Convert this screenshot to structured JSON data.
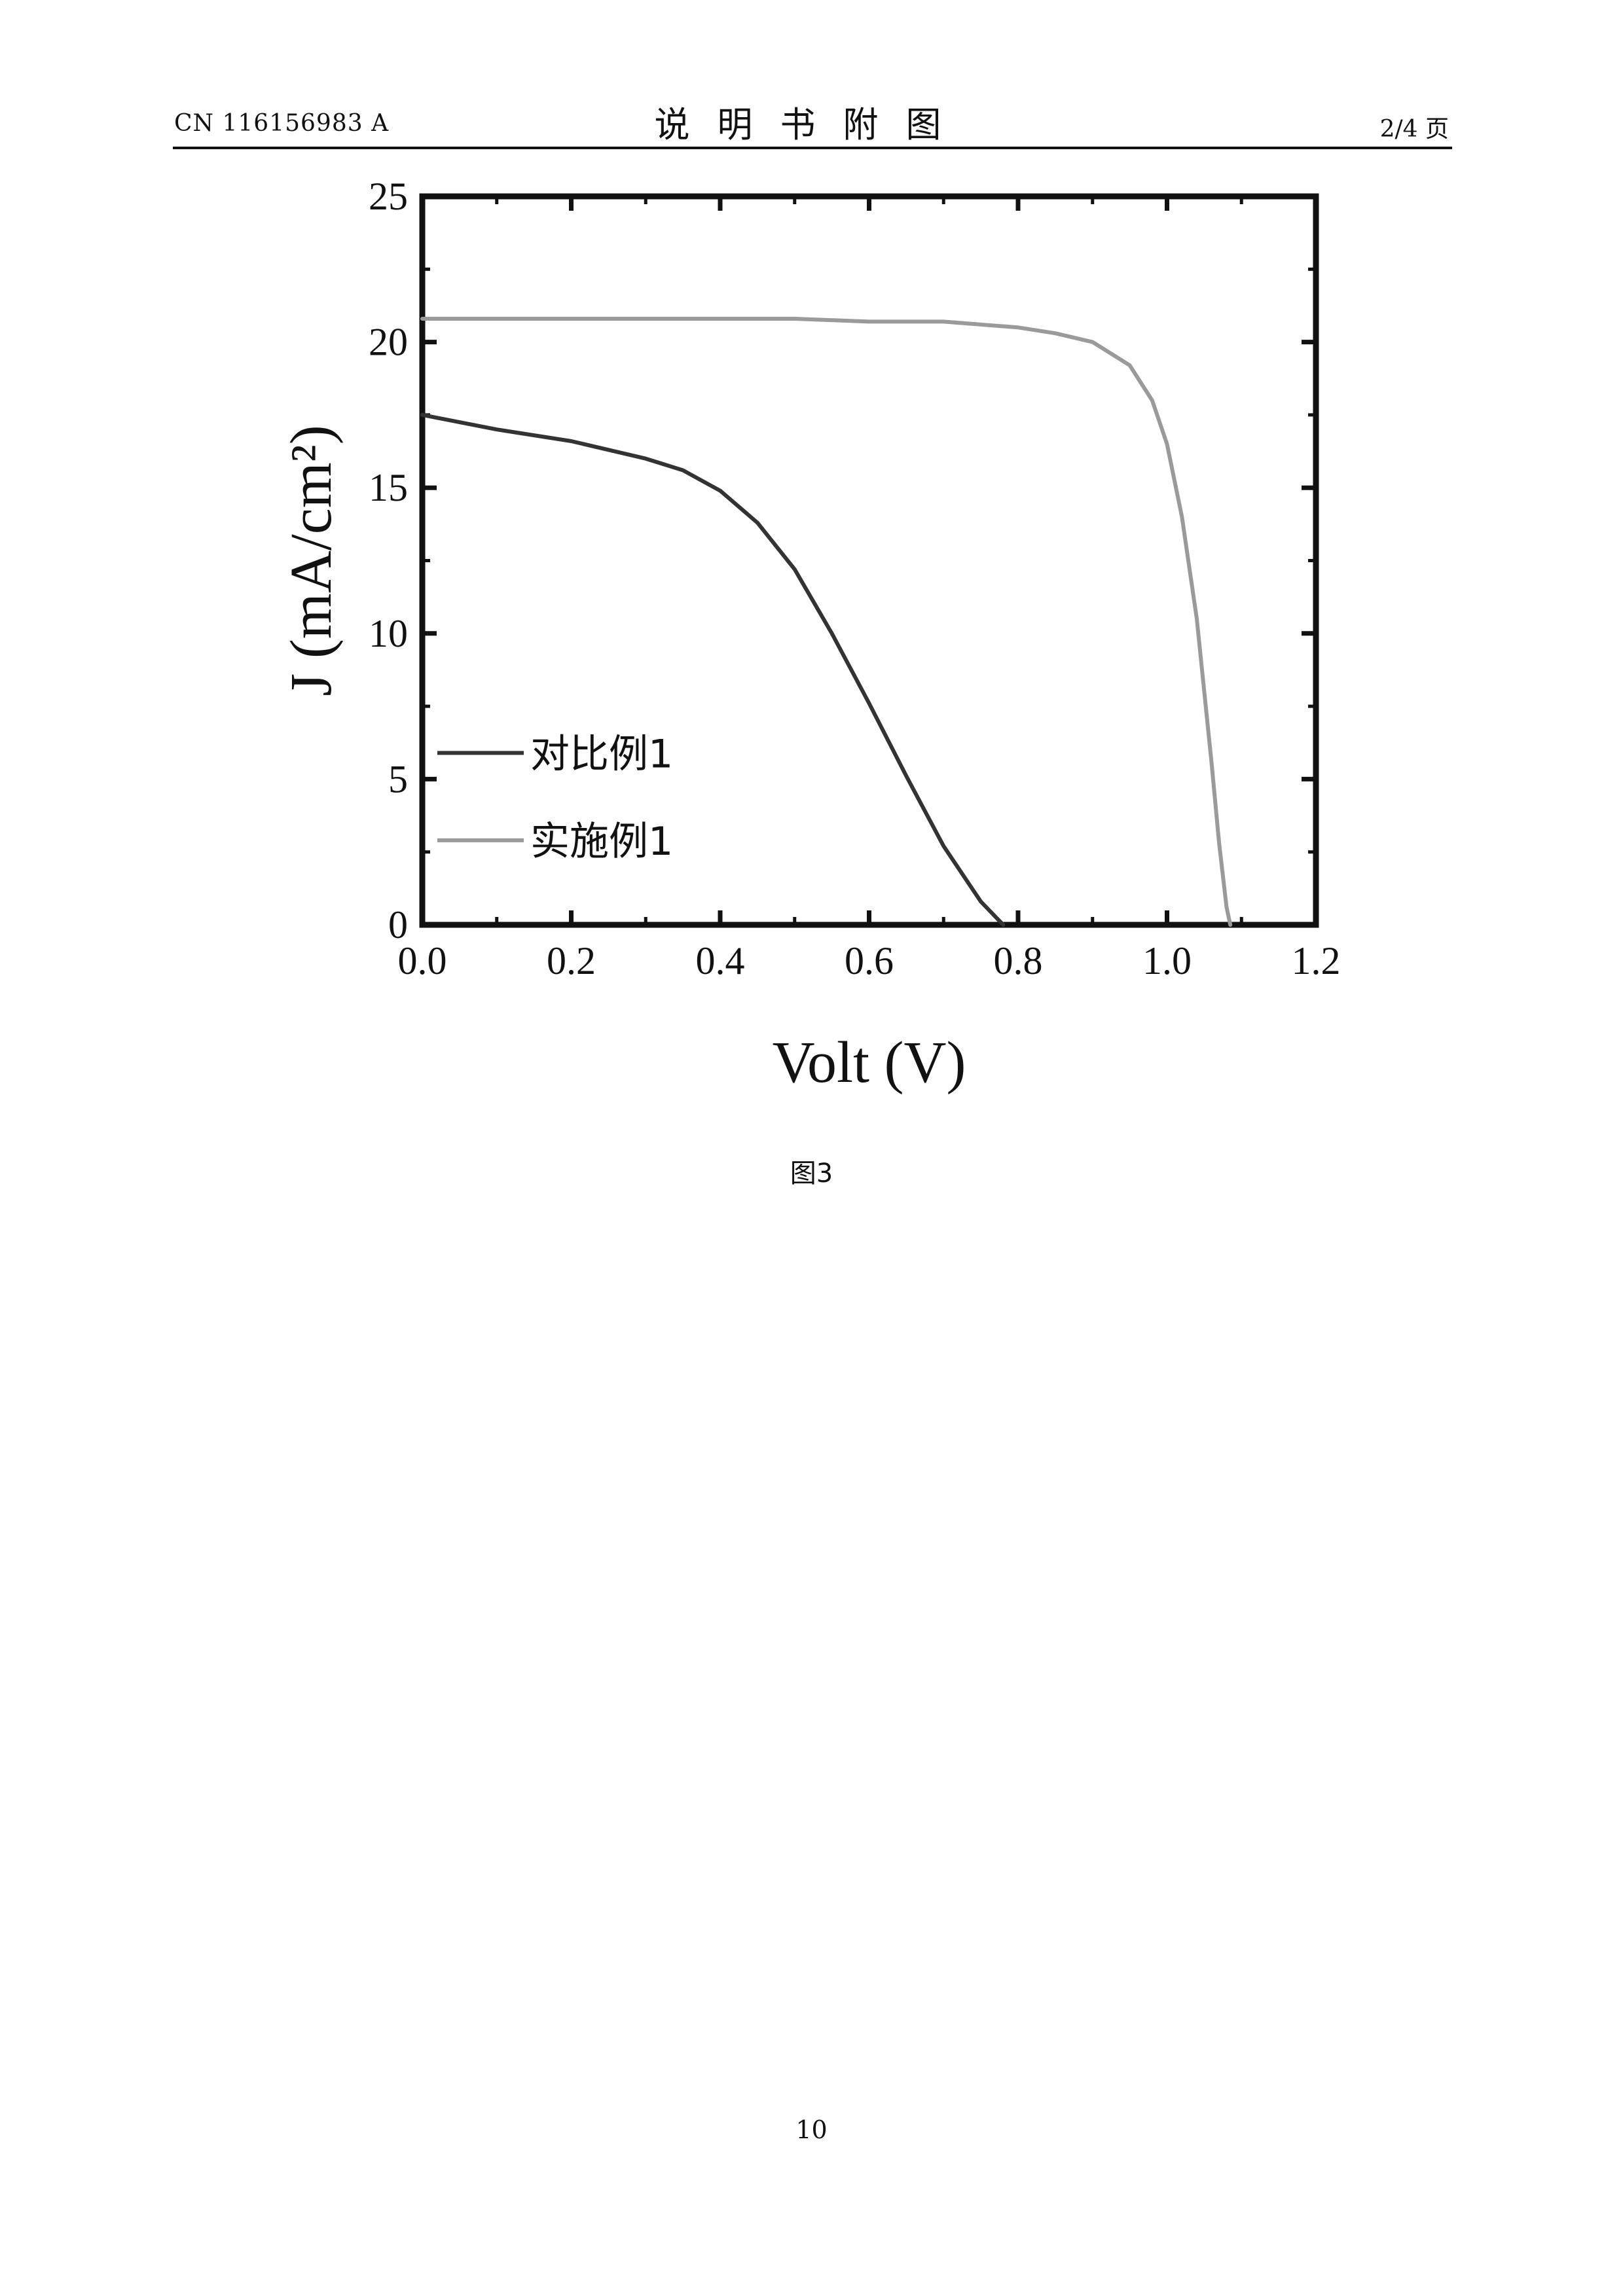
{
  "header": {
    "doc_number": "CN 116156983 A",
    "title": "说明书附图",
    "page_fraction": "2/4 页"
  },
  "figure": {
    "caption": "图3"
  },
  "footer": {
    "page_number": "10"
  },
  "chart_data": {
    "type": "line",
    "title": "",
    "xlabel": "Volt (V)",
    "ylabel": "J (mA/cm²)",
    "xlim": [
      0.0,
      1.2
    ],
    "ylim": [
      0,
      25
    ],
    "xticks": [
      "0.0",
      "0.2",
      "0.4",
      "0.6",
      "0.8",
      "1.0",
      "1.2"
    ],
    "yticks": [
      "0",
      "5",
      "10",
      "15",
      "20",
      "25"
    ],
    "grid": false,
    "legend_position": "lower-left",
    "series": [
      {
        "name": "对比例1",
        "color": "#333333",
        "x": [
          0.0,
          0.1,
          0.2,
          0.3,
          0.35,
          0.4,
          0.45,
          0.5,
          0.55,
          0.6,
          0.65,
          0.7,
          0.75,
          0.78
        ],
        "y": [
          17.5,
          17.0,
          16.6,
          16.0,
          15.6,
          14.9,
          13.8,
          12.2,
          10.0,
          7.6,
          5.1,
          2.7,
          0.8,
          0.0
        ]
      },
      {
        "name": "实施例1",
        "color": "#9a9a9a",
        "x": [
          0.0,
          0.1,
          0.2,
          0.3,
          0.4,
          0.5,
          0.6,
          0.7,
          0.8,
          0.85,
          0.9,
          0.95,
          0.98,
          1.0,
          1.02,
          1.04,
          1.06,
          1.07,
          1.08,
          1.085
        ],
        "y": [
          20.8,
          20.8,
          20.8,
          20.8,
          20.8,
          20.8,
          20.7,
          20.7,
          20.5,
          20.3,
          20.0,
          19.2,
          18.0,
          16.5,
          14.0,
          10.5,
          5.5,
          2.8,
          0.6,
          0.0
        ]
      }
    ]
  }
}
